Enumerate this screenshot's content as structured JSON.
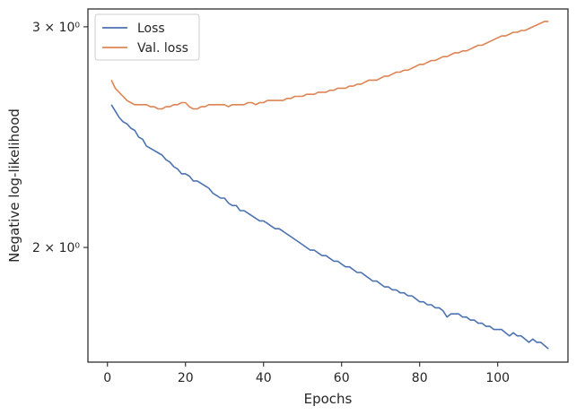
{
  "chart_data": {
    "type": "line",
    "xlabel": "Epochs",
    "ylabel": "Negative log-likelihood",
    "yscale": "log",
    "xlim": [
      -5,
      118
    ],
    "ylim": [
      1.62,
      3.1
    ],
    "xticks": [
      0,
      20,
      40,
      60,
      80,
      100
    ],
    "xtick_labels": [
      "0",
      "20",
      "40",
      "60",
      "80",
      "100"
    ],
    "yticks": [
      2,
      3
    ],
    "ytick_labels": [
      "2 × 10⁰",
      "3 × 10⁰"
    ],
    "legend_position": "upper-left",
    "grid": false,
    "x": [
      1,
      2,
      3,
      4,
      5,
      6,
      7,
      8,
      9,
      10,
      11,
      12,
      13,
      14,
      15,
      16,
      17,
      18,
      19,
      20,
      21,
      22,
      23,
      24,
      25,
      26,
      27,
      28,
      29,
      30,
      31,
      32,
      33,
      34,
      35,
      36,
      37,
      38,
      39,
      40,
      41,
      42,
      43,
      44,
      45,
      46,
      47,
      48,
      49,
      50,
      51,
      52,
      53,
      54,
      55,
      56,
      57,
      58,
      59,
      60,
      61,
      62,
      63,
      64,
      65,
      66,
      67,
      68,
      69,
      70,
      71,
      72,
      73,
      74,
      75,
      76,
      77,
      78,
      79,
      80,
      81,
      82,
      83,
      84,
      85,
      86,
      87,
      88,
      89,
      90,
      91,
      92,
      93,
      94,
      95,
      96,
      97,
      98,
      99,
      100,
      101,
      102,
      103,
      104,
      105,
      106,
      107,
      108,
      109,
      110,
      111,
      112,
      113
    ],
    "series": [
      {
        "name": "Loss",
        "color": "#4c72b0",
        "values": [
          2.6,
          2.57,
          2.54,
          2.52,
          2.51,
          2.49,
          2.48,
          2.45,
          2.44,
          2.41,
          2.4,
          2.39,
          2.38,
          2.37,
          2.35,
          2.34,
          2.32,
          2.31,
          2.29,
          2.29,
          2.28,
          2.26,
          2.26,
          2.25,
          2.24,
          2.23,
          2.21,
          2.2,
          2.19,
          2.19,
          2.17,
          2.16,
          2.16,
          2.14,
          2.14,
          2.13,
          2.12,
          2.11,
          2.1,
          2.1,
          2.09,
          2.08,
          2.07,
          2.07,
          2.06,
          2.05,
          2.04,
          2.03,
          2.02,
          2.01,
          2.0,
          1.99,
          1.99,
          1.98,
          1.97,
          1.97,
          1.96,
          1.95,
          1.95,
          1.94,
          1.93,
          1.93,
          1.92,
          1.91,
          1.91,
          1.9,
          1.89,
          1.88,
          1.88,
          1.87,
          1.86,
          1.86,
          1.85,
          1.85,
          1.84,
          1.84,
          1.83,
          1.83,
          1.82,
          1.81,
          1.81,
          1.8,
          1.8,
          1.79,
          1.79,
          1.78,
          1.76,
          1.77,
          1.77,
          1.77,
          1.76,
          1.76,
          1.75,
          1.75,
          1.74,
          1.74,
          1.73,
          1.73,
          1.72,
          1.72,
          1.72,
          1.71,
          1.7,
          1.71,
          1.7,
          1.7,
          1.69,
          1.68,
          1.69,
          1.68,
          1.68,
          1.67,
          1.66
        ]
      },
      {
        "name": "Val. loss",
        "color": "#dd8452",
        "values": [
          2.72,
          2.68,
          2.66,
          2.64,
          2.62,
          2.61,
          2.6,
          2.6,
          2.6,
          2.6,
          2.59,
          2.59,
          2.58,
          2.58,
          2.59,
          2.59,
          2.6,
          2.6,
          2.61,
          2.61,
          2.59,
          2.58,
          2.58,
          2.59,
          2.59,
          2.6,
          2.6,
          2.6,
          2.6,
          2.6,
          2.59,
          2.6,
          2.6,
          2.6,
          2.6,
          2.61,
          2.61,
          2.6,
          2.61,
          2.61,
          2.62,
          2.62,
          2.62,
          2.62,
          2.62,
          2.63,
          2.63,
          2.64,
          2.64,
          2.64,
          2.65,
          2.65,
          2.65,
          2.66,
          2.66,
          2.66,
          2.67,
          2.67,
          2.68,
          2.68,
          2.68,
          2.69,
          2.69,
          2.7,
          2.7,
          2.71,
          2.72,
          2.72,
          2.72,
          2.73,
          2.74,
          2.74,
          2.75,
          2.76,
          2.76,
          2.77,
          2.77,
          2.78,
          2.79,
          2.8,
          2.8,
          2.81,
          2.82,
          2.82,
          2.83,
          2.84,
          2.84,
          2.85,
          2.86,
          2.86,
          2.87,
          2.87,
          2.88,
          2.89,
          2.9,
          2.9,
          2.91,
          2.92,
          2.93,
          2.94,
          2.95,
          2.95,
          2.96,
          2.97,
          2.97,
          2.98,
          2.98,
          2.99,
          3.0,
          3.01,
          3.02,
          3.03,
          3.03
        ]
      }
    ]
  }
}
